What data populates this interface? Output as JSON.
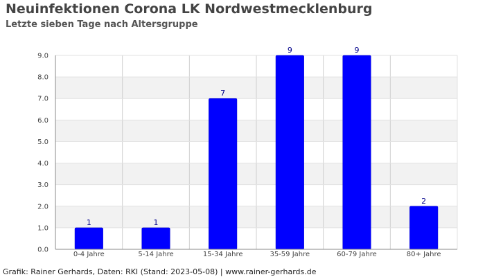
{
  "chart_data": {
    "type": "bar",
    "title": "Neuinfektionen Corona LK Nordwestmecklenburg",
    "subtitle": "Letzte sieben Tage nach Altersgruppe",
    "xlabel": "",
    "ylabel": "",
    "categories": [
      "0-4 Jahre",
      "5-14 Jahre",
      "15-34 Jahre",
      "35-59 Jahre",
      "60-79 Jahre",
      "80+ Jahre"
    ],
    "values": [
      1,
      1,
      7,
      9,
      9,
      2
    ],
    "data_labels": [
      "1",
      "1",
      "7",
      "9",
      "9",
      "2"
    ],
    "ylim": [
      0,
      9
    ],
    "yticks": [
      "0.0",
      "1.0",
      "2.0",
      "3.0",
      "4.0",
      "5.0",
      "6.0",
      "7.0",
      "8.0",
      "9.0"
    ],
    "bar_color": "#0000ff",
    "band_color": "#f2f2f2",
    "grid": true,
    "legend": "none"
  },
  "footer": "Grafik: Rainer Gerhards, Daten: RKI (Stand: 2023-05-08) | www.rainer-gerhards.de"
}
